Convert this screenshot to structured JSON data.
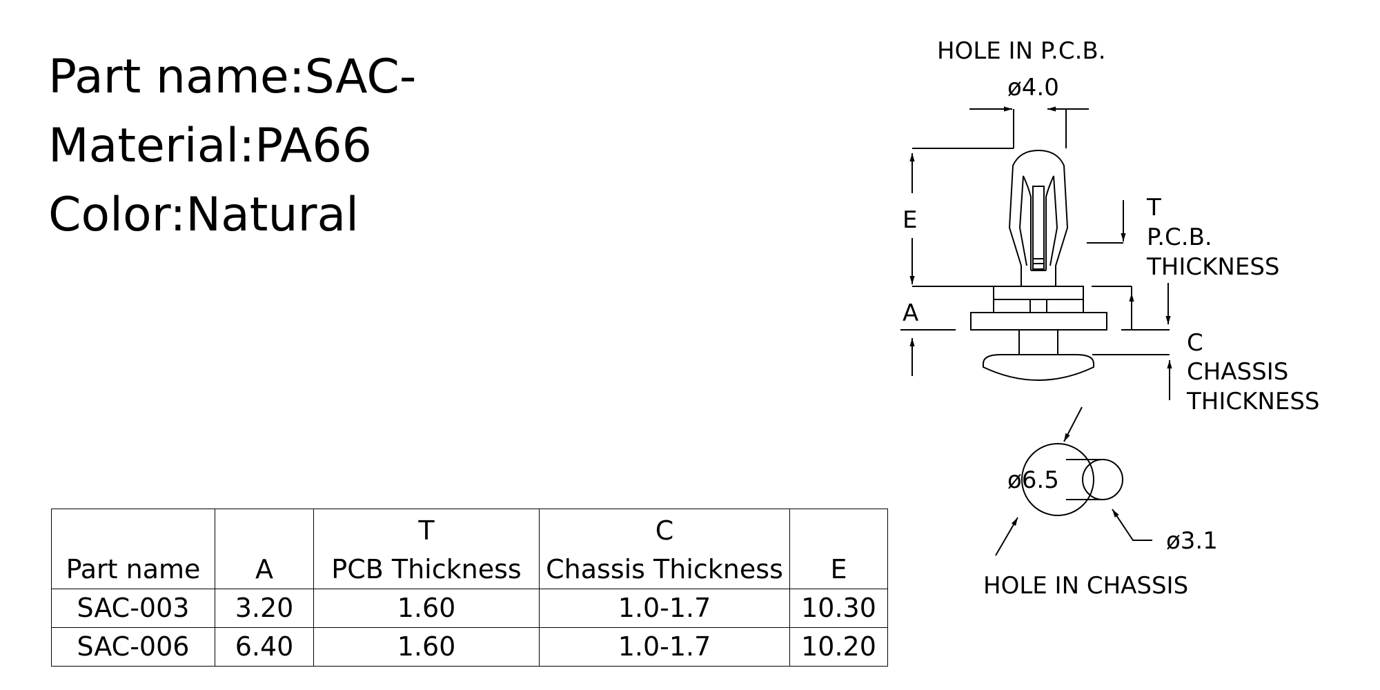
{
  "specs": {
    "part_name": "Part name:SAC-",
    "material": "Material:PA66",
    "color": "Color:Natural"
  },
  "table": {
    "headers": {
      "part_name": "Part name",
      "a": "A",
      "t_top": "T",
      "t_bottom": "PCB Thickness",
      "c_top": "C",
      "c_bottom": "Chassis Thickness",
      "e": "E"
    },
    "rows": [
      {
        "part": "SAC-003",
        "a": "3.20",
        "t": "1.60",
        "c": "1.0-1.7",
        "e": "10.30"
      },
      {
        "part": "SAC-006",
        "a": "6.40",
        "t": "1.60",
        "c": "1.0-1.7",
        "e": "10.20"
      }
    ]
  },
  "drawing": {
    "hole_pcb_label": "HOLE  IN  P.C.B.",
    "hole_pcb_dia": "ø4.0",
    "label_e": "E",
    "label_t": "T",
    "pcb_line1": "P.C.B.",
    "pcb_line2": "THICKNESS",
    "label_a": "A",
    "label_c": "C",
    "chassis_line1": "CHASSIS",
    "chassis_line2": "THICKNESS",
    "dia_large": "ø6.5",
    "dia_small": "ø3.1",
    "hole_chassis_label": "HOLE  IN  CHASSIS"
  }
}
